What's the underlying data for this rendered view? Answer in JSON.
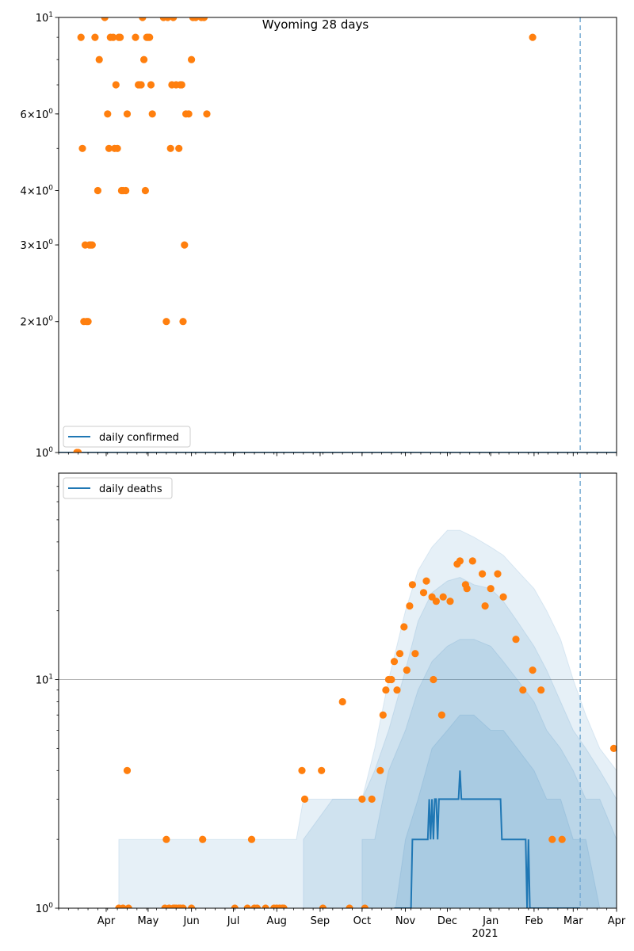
{
  "chart_data": [
    {
      "type": "scatter",
      "title": "Wyoming 28 days",
      "yscale": "log",
      "ylim": [
        1,
        10
      ],
      "xlim": [
        "2020-02-27",
        "2021-04-01"
      ],
      "ytick_labels": [
        {
          "value": 1,
          "text": "10^0"
        },
        {
          "value": 2,
          "text": "2×10^0"
        },
        {
          "value": 3,
          "text": "3×10^0"
        },
        {
          "value": 4,
          "text": "4×10^0"
        },
        {
          "value": 6,
          "text": "6×10^0"
        },
        {
          "value": 10,
          "text": "10^1"
        }
      ],
      "legend": {
        "entries": [
          "daily confirmed"
        ],
        "placement": "lower-left"
      },
      "vline": {
        "date": "2021-03-06",
        "style": "dashed",
        "color": "#7aadd4"
      },
      "line_color": "#1f77b4",
      "points_color": "#ff7f0e",
      "series": [
        {
          "name": "daily confirmed",
          "kind": "line",
          "x": [
            "2020-02-27",
            "2021-04-01"
          ],
          "y": [
            1,
            1
          ]
        }
      ],
      "points": [
        [
          "2020-03-11",
          1
        ],
        [
          "2020-03-12",
          1
        ],
        [
          "2020-03-14",
          9
        ],
        [
          "2020-03-15",
          5
        ],
        [
          "2020-03-16",
          2
        ],
        [
          "2020-03-17",
          3
        ],
        [
          "2020-03-18",
          2
        ],
        [
          "2020-03-19",
          2
        ],
        [
          "2020-03-20",
          3
        ],
        [
          "2020-03-21",
          3
        ],
        [
          "2020-03-22",
          3
        ],
        [
          "2020-03-24",
          9
        ],
        [
          "2020-03-26",
          4
        ],
        [
          "2020-03-27",
          8
        ],
        [
          "2020-03-31",
          10
        ],
        [
          "2020-04-02",
          6
        ],
        [
          "2020-04-03",
          5
        ],
        [
          "2020-04-04",
          9
        ],
        [
          "2020-04-06",
          9
        ],
        [
          "2020-04-07",
          5
        ],
        [
          "2020-04-08",
          7
        ],
        [
          "2020-04-09",
          5
        ],
        [
          "2020-04-10",
          9
        ],
        [
          "2020-04-11",
          9
        ],
        [
          "2020-04-12",
          4
        ],
        [
          "2020-04-13",
          4
        ],
        [
          "2020-04-15",
          4
        ],
        [
          "2020-04-16",
          6
        ],
        [
          "2020-04-22",
          9
        ],
        [
          "2020-04-24",
          7
        ],
        [
          "2020-04-25",
          7
        ],
        [
          "2020-04-26",
          7
        ],
        [
          "2020-04-27",
          10
        ],
        [
          "2020-04-28",
          8
        ],
        [
          "2020-04-29",
          4
        ],
        [
          "2020-04-30",
          9
        ],
        [
          "2020-05-01",
          9
        ],
        [
          "2020-05-02",
          9
        ],
        [
          "2020-05-03",
          7
        ],
        [
          "2020-05-04",
          6
        ],
        [
          "2020-05-12",
          10
        ],
        [
          "2020-05-14",
          2
        ],
        [
          "2020-05-15",
          10
        ],
        [
          "2020-05-17",
          5
        ],
        [
          "2020-05-18",
          7
        ],
        [
          "2020-05-19",
          10
        ],
        [
          "2020-05-21",
          7
        ],
        [
          "2020-05-23",
          5
        ],
        [
          "2020-05-24",
          7
        ],
        [
          "2020-05-25",
          7
        ],
        [
          "2020-05-26",
          2
        ],
        [
          "2020-05-27",
          3
        ],
        [
          "2020-05-28",
          6
        ],
        [
          "2020-05-30",
          6
        ],
        [
          "2020-06-01",
          8
        ],
        [
          "2020-06-02",
          10
        ],
        [
          "2020-06-04",
          10
        ],
        [
          "2020-06-08",
          10
        ],
        [
          "2020-06-10",
          10
        ],
        [
          "2020-06-12",
          6
        ],
        [
          "2021-01-31",
          9
        ]
      ]
    },
    {
      "type": "area",
      "yscale": "log",
      "ylim": [
        1,
        80
      ],
      "xlim": [
        "2020-02-27",
        "2021-04-01"
      ],
      "ytick_labels": [
        {
          "value": 1,
          "text": "10^0"
        },
        {
          "value": 10,
          "text": "10^1"
        }
      ],
      "grid": "horizontal line at 10",
      "legend": {
        "entries": [
          "daily deaths"
        ],
        "placement": "upper-left"
      },
      "vline": {
        "date": "2021-03-06",
        "style": "dashed",
        "color": "#7aadd4"
      },
      "line_color": "#1f77b4",
      "points_color": "#ff7f0e",
      "bands_color": "#1f77b4",
      "x_tick_labels": [
        "Apr",
        "May",
        "Jun",
        "Jul",
        "Aug",
        "Sep",
        "Oct",
        "Nov",
        "Dec",
        "Jan",
        "Feb",
        "Mar",
        "Apr"
      ],
      "x_year_label": "2021",
      "band_lines": [
        {
          "x": [
            "2020-04-10",
            "2020-04-12",
            "2020-04-18",
            "2020-04-20",
            "2020-05-10",
            "2020-05-30",
            "2020-06-01",
            "2020-07-05",
            "2020-08-15",
            "2020-08-20",
            "2020-09-10",
            "2020-10-01",
            "2020-10-10",
            "2020-10-20",
            "2020-11-01",
            "2020-11-10",
            "2020-11-20",
            "2020-12-01",
            "2020-12-10",
            "2020-12-20",
            "2021-01-01",
            "2021-01-10",
            "2021-01-20",
            "2021-02-01",
            "2021-02-10",
            "2021-02-20",
            "2021-03-01",
            "2021-03-10",
            "2021-03-20",
            "2021-04-01"
          ],
          "y": [
            2,
            2,
            2,
            2,
            2,
            2,
            2,
            2,
            2,
            3,
            3,
            3,
            5,
            10,
            20,
            30,
            38,
            45,
            45,
            42,
            38,
            35,
            30,
            25,
            20,
            15,
            10,
            7,
            5,
            4
          ]
        },
        {
          "x": [
            "2020-08-20",
            "2020-09-10",
            "2020-10-01",
            "2020-10-10",
            "2020-10-20",
            "2020-11-01",
            "2020-11-10",
            "2020-11-20",
            "2020-12-01",
            "2020-12-10",
            "2020-12-20",
            "2021-01-01",
            "2021-01-10",
            "2021-01-20",
            "2021-02-01",
            "2021-02-10",
            "2021-02-20",
            "2021-03-01",
            "2021-03-10",
            "2021-03-20",
            "2021-04-01"
          ],
          "y": [
            2,
            3,
            3,
            4,
            6,
            11,
            18,
            24,
            27,
            28,
            26,
            25,
            22,
            18,
            14,
            11,
            8,
            6,
            5,
            4,
            3
          ]
        },
        {
          "x": [
            "2020-10-01",
            "2020-10-10",
            "2020-10-20",
            "2020-11-01",
            "2020-11-10",
            "2020-11-20",
            "2020-12-01",
            "2020-12-10",
            "2020-12-20",
            "2021-01-01",
            "2021-01-10",
            "2021-01-20",
            "2021-02-01",
            "2021-02-10",
            "2021-02-20",
            "2021-03-01",
            "2021-03-10",
            "2021-03-20",
            "2021-04-01"
          ],
          "y": [
            2,
            2,
            4,
            6,
            9,
            12,
            14,
            15,
            15,
            14,
            12,
            10,
            8,
            6,
            5,
            4,
            3,
            3,
            2
          ]
        },
        {
          "x": [
            "2020-10-25",
            "2020-11-01",
            "2020-11-10",
            "2020-11-20",
            "2020-12-01",
            "2020-12-10",
            "2020-12-20",
            "2021-01-01",
            "2021-01-10",
            "2021-01-20",
            "2021-02-01",
            "2021-02-10",
            "2021-02-20",
            "2021-03-01",
            "2021-03-10",
            "2021-03-20",
            "2021-04-01"
          ],
          "y": [
            1,
            2,
            3,
            5,
            6,
            7,
            7,
            6,
            6,
            5,
            4,
            3,
            3,
            2,
            2,
            1,
            1
          ]
        }
      ],
      "series": [
        {
          "name": "daily deaths",
          "kind": "line",
          "x": [
            "2020-10-24",
            "2020-11-05",
            "2020-11-06",
            "2020-11-17",
            "2020-11-18",
            "2020-11-19",
            "2020-11-20",
            "2020-11-21",
            "2020-11-22",
            "2020-11-23",
            "2020-11-24",
            "2020-11-25",
            "2020-11-26",
            "2020-11-28",
            "2020-12-09",
            "2020-12-10",
            "2020-12-11",
            "2021-01-08",
            "2021-01-09",
            "2021-01-10",
            "2021-01-26",
            "2021-01-27",
            "2021-01-28",
            "2021-01-29",
            "2021-01-30",
            "2021-03-06"
          ],
          "y": [
            1,
            1,
            2,
            2,
            3,
            2,
            3,
            2,
            3,
            3,
            2,
            3,
            3,
            3,
            3,
            4,
            3,
            3,
            2,
            2,
            2,
            1,
            2,
            1,
            1,
            1
          ]
        }
      ],
      "points": [
        [
          "2020-04-10",
          1
        ],
        [
          "2020-04-13",
          1
        ],
        [
          "2020-04-16",
          4
        ],
        [
          "2020-04-17",
          1
        ],
        [
          "2020-05-14",
          2
        ],
        [
          "2020-05-13",
          1
        ],
        [
          "2020-05-16",
          1
        ],
        [
          "2020-05-19",
          1
        ],
        [
          "2020-05-20",
          1
        ],
        [
          "2020-05-21",
          1
        ],
        [
          "2020-05-23",
          1
        ],
        [
          "2020-05-24",
          1
        ],
        [
          "2020-05-26",
          1
        ],
        [
          "2020-06-01",
          1
        ],
        [
          "2020-06-09",
          2
        ],
        [
          "2020-07-02",
          1
        ],
        [
          "2020-07-11",
          1
        ],
        [
          "2020-07-14",
          2
        ],
        [
          "2020-07-16",
          1
        ],
        [
          "2020-07-18",
          1
        ],
        [
          "2020-07-24",
          1
        ],
        [
          "2020-07-30",
          1
        ],
        [
          "2020-08-01",
          1
        ],
        [
          "2020-08-03",
          1
        ],
        [
          "2020-08-05",
          1
        ],
        [
          "2020-08-06",
          1
        ],
        [
          "2020-08-19",
          4
        ],
        [
          "2020-08-21",
          3
        ],
        [
          "2020-09-02",
          4
        ],
        [
          "2020-09-03",
          1
        ],
        [
          "2020-09-17",
          8
        ],
        [
          "2020-09-22",
          1
        ],
        [
          "2020-10-01",
          3
        ],
        [
          "2020-10-03",
          1
        ],
        [
          "2020-10-08",
          3
        ],
        [
          "2020-10-14",
          4
        ],
        [
          "2020-10-16",
          7
        ],
        [
          "2020-10-18",
          9
        ],
        [
          "2020-10-20",
          10
        ],
        [
          "2020-10-22",
          10
        ],
        [
          "2020-10-24",
          12
        ],
        [
          "2020-10-26",
          9
        ],
        [
          "2020-10-28",
          13
        ],
        [
          "2020-10-31",
          17
        ],
        [
          "2020-11-02",
          11
        ],
        [
          "2020-11-04",
          21
        ],
        [
          "2020-11-06",
          26
        ],
        [
          "2020-11-08",
          13
        ],
        [
          "2020-11-14",
          24
        ],
        [
          "2020-11-16",
          27
        ],
        [
          "2020-11-20",
          23
        ],
        [
          "2020-11-21",
          10
        ],
        [
          "2020-11-23",
          22
        ],
        [
          "2020-11-27",
          7
        ],
        [
          "2020-11-28",
          23
        ],
        [
          "2020-12-03",
          22
        ],
        [
          "2020-12-08",
          32
        ],
        [
          "2020-12-10",
          33
        ],
        [
          "2020-12-14",
          26
        ],
        [
          "2020-12-15",
          25
        ],
        [
          "2020-12-19",
          33
        ],
        [
          "2020-12-26",
          29
        ],
        [
          "2020-12-28",
          21
        ],
        [
          "2021-01-01",
          25
        ],
        [
          "2021-01-06",
          29
        ],
        [
          "2021-01-10",
          23
        ],
        [
          "2021-01-19",
          15
        ],
        [
          "2021-01-24",
          9
        ],
        [
          "2021-01-31",
          11
        ],
        [
          "2021-02-06",
          9
        ],
        [
          "2021-02-14",
          2
        ],
        [
          "2021-02-21",
          2
        ],
        [
          "2021-03-30",
          5
        ]
      ]
    }
  ]
}
